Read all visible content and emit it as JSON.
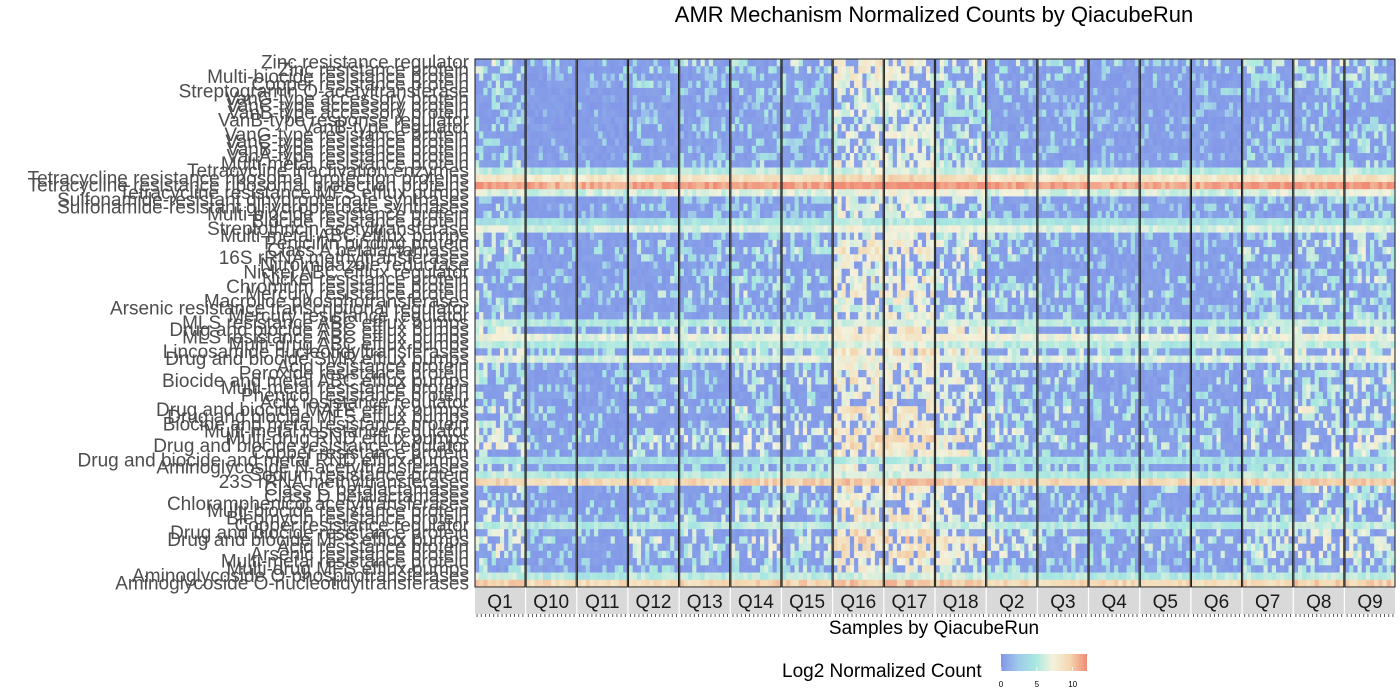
{
  "chart_data": {
    "type": "heatmap",
    "title": "AMR Mechanism Normalized Counts by QiacubeRun",
    "xlabel": "Samples by QiacubeRun",
    "ylabel": "",
    "legend": {
      "title": "Log2 Normalized Count",
      "ticks": [
        0,
        5,
        10
      ],
      "range": [
        0,
        12
      ],
      "colors": [
        "#8297e8",
        "#9fc9ea",
        "#a7e8e0",
        "#f4f2dc",
        "#f3d7b0",
        "#f08b76"
      ],
      "placement": "bottom"
    },
    "facets": [
      "Q1",
      "Q10",
      "Q11",
      "Q12",
      "Q13",
      "Q14",
      "Q15",
      "Q16",
      "Q17",
      "Q18",
      "Q2",
      "Q3",
      "Q4",
      "Q5",
      "Q6",
      "Q7",
      "Q8",
      "Q9"
    ],
    "samples_per_facet": 12,
    "rows": [
      "Zinc resistance regulator",
      "Zinc resistance protein",
      "Multi-biocide resistance protein",
      "Copper resistance protein",
      "Streptogramin O-acetyltransferase",
      "VanG-type accessory protein",
      "VanC-type accessory protein",
      "VanB-type accessory protein",
      "VanB-type response regulator",
      "VanB-type regulator",
      "VanG-type resistance protein",
      "VanC-type resistance protein",
      "VanB-type resistance protein",
      "VanA-type resistance protein",
      "Multi-metal resistance protein",
      "Tetracycline inactivation enzymes",
      "Tetracycline resistance ribosomal protection proteins",
      "Tetracycline resistance ribosomal protection proteins",
      "Tetracycline resistance MFS efflux pumps",
      "Sulfonamide-resistant dihydropteroate synthases",
      "Sulfonamide-resistant dihydropteroate synthases",
      "Multi-biocide resistance protein",
      "Biocide resistance protein",
      "Streptothricin acetyltransferase",
      "Multi-metal ABC efflux pumps",
      "Penicillin binding protein",
      "Class A betalactamases",
      "16S rRNA methyltransferases",
      "Nitroimidazole reductase",
      "Nickel ABC efflux regulator",
      "Nickel resistance protein",
      "Chromium resistance protein",
      "Mercury resistance protein",
      "Macrolide phosphotransferases",
      "Arsenic resistance transcriptional regulator",
      "Mercury resistance regulator",
      "MLS resistance ABC efflux pumps",
      "Drug and biocide ABC efflux pumps",
      "MLS resistance ABC efflux pumps",
      "Multi-drug ABC efflux pumps",
      "Lincosamide nucleotidyltransferases",
      "Drug and biocide SMR efflux pumps",
      "Acid resistance protein",
      "Peroxide resistance protein",
      "Biocide and metal ABC efflux pumps",
      "Multi-metal resistance protein",
      "Phenicol resistance protein",
      "Acid resistance regulator",
      "Drug and biocide MATE efflux pumps",
      "Drug and biocide MFS efflux pumps",
      "Biocide and metal resistance protein",
      "Multi-metal resistance regulator",
      "Multi-drug RND efflux pumps",
      "Drug and biocide resistance regulator",
      "Copper resistance protein",
      "Drug and biocide and metal RND efflux pumps",
      "Aminoglycoside N-acetyltransferases",
      "Sodium resistance protein",
      "23S rRNA methyltransferases",
      "Class C betalactamases",
      "Class D betalactamases",
      "Chloramphenicol acetyltransferases",
      "Multi-biocide resistance protein",
      "Bleomycin resistance protein",
      "Copper resistance regulator",
      "Drug and biocide resistance protein",
      "Drug and biocide MFS efflux pumps",
      "Acid resistance protein",
      "Arsenic resistance protein",
      "Multi-metal resistance protein",
      "Multi-drug MFS efflux pumps",
      "Aminoglycoside O-phosphotransferases",
      "Aminoglycoside O-nucleotidyltransferases"
    ],
    "row_base_levels": [
      2.5,
      2,
      1.5,
      1.5,
      1,
      0.5,
      0.5,
      0.5,
      0.5,
      1,
      1,
      1,
      1,
      1,
      1.5,
      5,
      8,
      11,
      6,
      1,
      1,
      1,
      4,
      6,
      1.5,
      2,
      2.5,
      2,
      1.5,
      1,
      2,
      1.5,
      2.5,
      1.5,
      1,
      2,
      5,
      3,
      6.5,
      5,
      3,
      6,
      1.5,
      2,
      2.5,
      2,
      1.5,
      2,
      3,
      2.5,
      2,
      3,
      3.5,
      3,
      2.5,
      4,
      2,
      5,
      9,
      2.5,
      1.5,
      2,
      2.5,
      2.5,
      5,
      3,
      3.5,
      3,
      3,
      2,
      2,
      5,
      9
    ],
    "facet_boost": [
      2,
      0,
      0,
      1,
      1,
      1.5,
      1.5,
      4,
      4,
      3,
      1.5,
      1,
      0.5,
      0.5,
      0.5,
      1.5,
      2,
      2
    ]
  }
}
